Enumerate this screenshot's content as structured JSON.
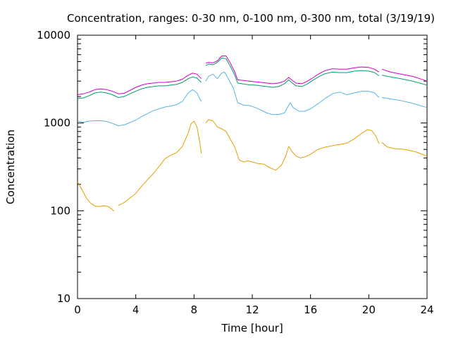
{
  "chart_data": {
    "type": "line",
    "title": "Concentration, ranges: 0-30 nm, 0-100 nm, 0-300 nm, total (3/19/19)",
    "xlabel": "Time [hour]",
    "ylabel": "Concentration",
    "xlim": [
      0,
      24
    ],
    "ylim": [
      10,
      10000
    ],
    "yscale": "log",
    "xticks": [
      "0",
      "4",
      "8",
      "12",
      "16",
      "20",
      "24"
    ],
    "yticks": [
      "10",
      "100",
      "1000",
      "10000"
    ],
    "grid": false,
    "series": [
      {
        "color": "#e69f00",
        "segments": [
          [
            [
              0,
              214
            ],
            [
              0.3,
              175
            ],
            [
              0.6,
              140
            ],
            [
              0.9,
              122
            ],
            [
              1.2,
              113
            ],
            [
              1.5,
              112
            ],
            [
              1.8,
              114
            ],
            [
              2.1,
              112
            ],
            [
              2.4,
              103
            ],
            [
              2.5,
              99
            ]
          ],
          [
            [
              2.8,
              115
            ],
            [
              3.2,
              124
            ],
            [
              3.6,
              140
            ],
            [
              4.0,
              158
            ],
            [
              4.4,
              190
            ],
            [
              4.8,
              225
            ],
            [
              5.2,
              265
            ],
            [
              5.6,
              320
            ],
            [
              6.0,
              390
            ],
            [
              6.4,
              430
            ],
            [
              6.8,
              460
            ],
            [
              7.2,
              540
            ],
            [
              7.6,
              770
            ],
            [
              7.8,
              980
            ],
            [
              8.0,
              1050
            ],
            [
              8.2,
              900
            ],
            [
              8.4,
              600
            ],
            [
              8.5,
              450
            ]
          ],
          [
            [
              8.8,
              1000
            ],
            [
              9.0,
              1090
            ],
            [
              9.3,
              1060
            ],
            [
              9.6,
              900
            ],
            [
              9.9,
              860
            ],
            [
              10.2,
              800
            ],
            [
              10.5,
              650
            ],
            [
              10.8,
              530
            ],
            [
              11.1,
              380
            ],
            [
              11.4,
              360
            ],
            [
              11.7,
              370
            ],
            [
              12.0,
              360
            ],
            [
              12.4,
              345
            ],
            [
              12.8,
              340
            ],
            [
              13.2,
              310
            ],
            [
              13.6,
              290
            ],
            [
              14.0,
              330
            ],
            [
              14.3,
              420
            ],
            [
              14.5,
              540
            ],
            [
              14.7,
              480
            ],
            [
              15.0,
              420
            ],
            [
              15.3,
              400
            ],
            [
              15.6,
              410
            ],
            [
              16.0,
              440
            ],
            [
              16.5,
              500
            ],
            [
              17.0,
              530
            ],
            [
              17.5,
              550
            ],
            [
              18.0,
              570
            ],
            [
              18.5,
              590
            ],
            [
              19.0,
              660
            ],
            [
              19.5,
              760
            ],
            [
              19.9,
              840
            ],
            [
              20.2,
              820
            ],
            [
              20.5,
              700
            ],
            [
              20.7,
              580
            ]
          ],
          [
            [
              20.9,
              600
            ],
            [
              21.3,
              530
            ],
            [
              21.8,
              510
            ],
            [
              22.5,
              500
            ],
            [
              23.2,
              470
            ],
            [
              24,
              420
            ]
          ]
        ]
      },
      {
        "color": "#56b4e9",
        "segments": [
          [
            [
              0,
              1050
            ],
            [
              0.4,
              1020
            ],
            [
              0.8,
              1050
            ],
            [
              1.2,
              1060
            ],
            [
              1.6,
              1060
            ],
            [
              2.0,
              1040
            ],
            [
              2.4,
              990
            ],
            [
              2.8,
              930
            ],
            [
              3.2,
              950
            ],
            [
              3.6,
              1010
            ],
            [
              4.0,
              1080
            ],
            [
              4.4,
              1180
            ],
            [
              4.8,
              1280
            ],
            [
              5.2,
              1380
            ],
            [
              5.6,
              1450
            ],
            [
              6.0,
              1520
            ],
            [
              6.4,
              1560
            ],
            [
              6.8,
              1620
            ],
            [
              7.2,
              1760
            ],
            [
              7.6,
              2200
            ],
            [
              7.9,
              2400
            ],
            [
              8.2,
              2200
            ],
            [
              8.5,
              1750
            ]
          ],
          [
            [
              8.8,
              3000
            ],
            [
              9.0,
              3400
            ],
            [
              9.3,
              3600
            ],
            [
              9.6,
              3200
            ],
            [
              9.9,
              3700
            ],
            [
              10.1,
              3800
            ],
            [
              10.4,
              3100
            ],
            [
              10.7,
              2500
            ],
            [
              11.0,
              1700
            ],
            [
              11.4,
              1600
            ],
            [
              11.8,
              1580
            ],
            [
              12.2,
              1500
            ],
            [
              12.6,
              1400
            ],
            [
              13.0,
              1300
            ],
            [
              13.4,
              1250
            ],
            [
              13.8,
              1250
            ],
            [
              14.2,
              1300
            ],
            [
              14.6,
              1700
            ],
            [
              14.8,
              1500
            ],
            [
              15.2,
              1360
            ],
            [
              15.6,
              1360
            ],
            [
              16.0,
              1450
            ],
            [
              16.5,
              1650
            ],
            [
              17.0,
              1900
            ],
            [
              17.5,
              2150
            ],
            [
              18.0,
              2250
            ],
            [
              18.5,
              2100
            ],
            [
              19.0,
              2200
            ],
            [
              19.5,
              2300
            ],
            [
              20.0,
              2300
            ],
            [
              20.4,
              2200
            ],
            [
              20.7,
              1950
            ]
          ],
          [
            [
              20.9,
              1950
            ],
            [
              21.5,
              1880
            ],
            [
              22.2,
              1800
            ],
            [
              23.0,
              1680
            ],
            [
              23.5,
              1580
            ],
            [
              24,
              1500
            ]
          ]
        ]
      },
      {
        "color": "#009e73",
        "segments": [
          [
            [
              0,
              1900
            ],
            [
              0.4,
              1930
            ],
            [
              0.8,
              2050
            ],
            [
              1.2,
              2200
            ],
            [
              1.6,
              2250
            ],
            [
              2.0,
              2200
            ],
            [
              2.4,
              2100
            ],
            [
              2.8,
              1950
            ],
            [
              3.2,
              2000
            ],
            [
              3.6,
              2150
            ],
            [
              4.0,
              2300
            ],
            [
              4.4,
              2450
            ],
            [
              4.8,
              2550
            ],
            [
              5.2,
              2600
            ],
            [
              5.6,
              2650
            ],
            [
              6.0,
              2650
            ],
            [
              6.4,
              2700
            ],
            [
              6.8,
              2750
            ],
            [
              7.2,
              2900
            ],
            [
              7.6,
              3200
            ],
            [
              7.9,
              3350
            ],
            [
              8.2,
              3250
            ],
            [
              8.5,
              2900
            ]
          ],
          [
            [
              8.8,
              4500
            ],
            [
              9.0,
              4700
            ],
            [
              9.3,
              4600
            ],
            [
              9.6,
              4900
            ],
            [
              9.9,
              5500
            ],
            [
              10.2,
              5400
            ],
            [
              10.5,
              4400
            ],
            [
              10.8,
              3500
            ],
            [
              11.0,
              2850
            ],
            [
              11.4,
              2780
            ],
            [
              11.8,
              2720
            ],
            [
              12.2,
              2700
            ],
            [
              12.6,
              2650
            ],
            [
              13.0,
              2600
            ],
            [
              13.4,
              2550
            ],
            [
              13.8,
              2600
            ],
            [
              14.2,
              2800
            ],
            [
              14.5,
              3100
            ],
            [
              14.7,
              2900
            ],
            [
              15.0,
              2650
            ],
            [
              15.4,
              2600
            ],
            [
              15.8,
              2800
            ],
            [
              16.2,
              3100
            ],
            [
              16.6,
              3400
            ],
            [
              17.0,
              3650
            ],
            [
              17.5,
              3800
            ],
            [
              18.0,
              3750
            ],
            [
              18.5,
              3750
            ],
            [
              19.0,
              3900
            ],
            [
              19.5,
              3950
            ],
            [
              20.0,
              3900
            ],
            [
              20.4,
              3750
            ],
            [
              20.7,
              3450
            ]
          ],
          [
            [
              20.9,
              3500
            ],
            [
              21.5,
              3350
            ],
            [
              22.2,
              3200
            ],
            [
              23.0,
              3000
            ],
            [
              23.5,
              2850
            ],
            [
              24,
              2700
            ]
          ]
        ]
      },
      {
        "color": "#cc00cc",
        "segments": [
          [
            [
              0,
              2100
            ],
            [
              0.4,
              2150
            ],
            [
              0.8,
              2250
            ],
            [
              1.2,
              2400
            ],
            [
              1.6,
              2450
            ],
            [
              2.0,
              2400
            ],
            [
              2.4,
              2300
            ],
            [
              2.8,
              2150
            ],
            [
              3.2,
              2180
            ],
            [
              3.6,
              2350
            ],
            [
              4.0,
              2550
            ],
            [
              4.4,
              2700
            ],
            [
              4.8,
              2800
            ],
            [
              5.2,
              2850
            ],
            [
              5.6,
              2900
            ],
            [
              6.0,
              2900
            ],
            [
              6.4,
              2950
            ],
            [
              6.8,
              3000
            ],
            [
              7.2,
              3150
            ],
            [
              7.6,
              3500
            ],
            [
              7.9,
              3700
            ],
            [
              8.2,
              3600
            ],
            [
              8.5,
              3200
            ]
          ],
          [
            [
              8.8,
              4800
            ],
            [
              9.0,
              4900
            ],
            [
              9.3,
              4850
            ],
            [
              9.6,
              5100
            ],
            [
              9.9,
              5800
            ],
            [
              10.2,
              5800
            ],
            [
              10.5,
              4800
            ],
            [
              10.8,
              3800
            ],
            [
              11.0,
              3100
            ],
            [
              11.4,
              3050
            ],
            [
              11.8,
              3000
            ],
            [
              12.2,
              2950
            ],
            [
              12.6,
              2900
            ],
            [
              13.0,
              2850
            ],
            [
              13.4,
              2800
            ],
            [
              13.8,
              2850
            ],
            [
              14.2,
              3000
            ],
            [
              14.5,
              3300
            ],
            [
              14.7,
              3100
            ],
            [
              15.0,
              2850
            ],
            [
              15.4,
              2800
            ],
            [
              15.8,
              3000
            ],
            [
              16.2,
              3300
            ],
            [
              16.6,
              3650
            ],
            [
              17.0,
              3950
            ],
            [
              17.5,
              4150
            ],
            [
              18.0,
              4100
            ],
            [
              18.5,
              4100
            ],
            [
              19.0,
              4250
            ],
            [
              19.5,
              4350
            ],
            [
              20.0,
              4300
            ],
            [
              20.4,
              4100
            ],
            [
              20.7,
              3800
            ]
          ],
          [
            [
              20.9,
              4100
            ],
            [
              21.5,
              3800
            ],
            [
              22.2,
              3600
            ],
            [
              23.0,
              3400
            ],
            [
              23.5,
              3200
            ],
            [
              24,
              3000
            ]
          ]
        ]
      }
    ]
  }
}
